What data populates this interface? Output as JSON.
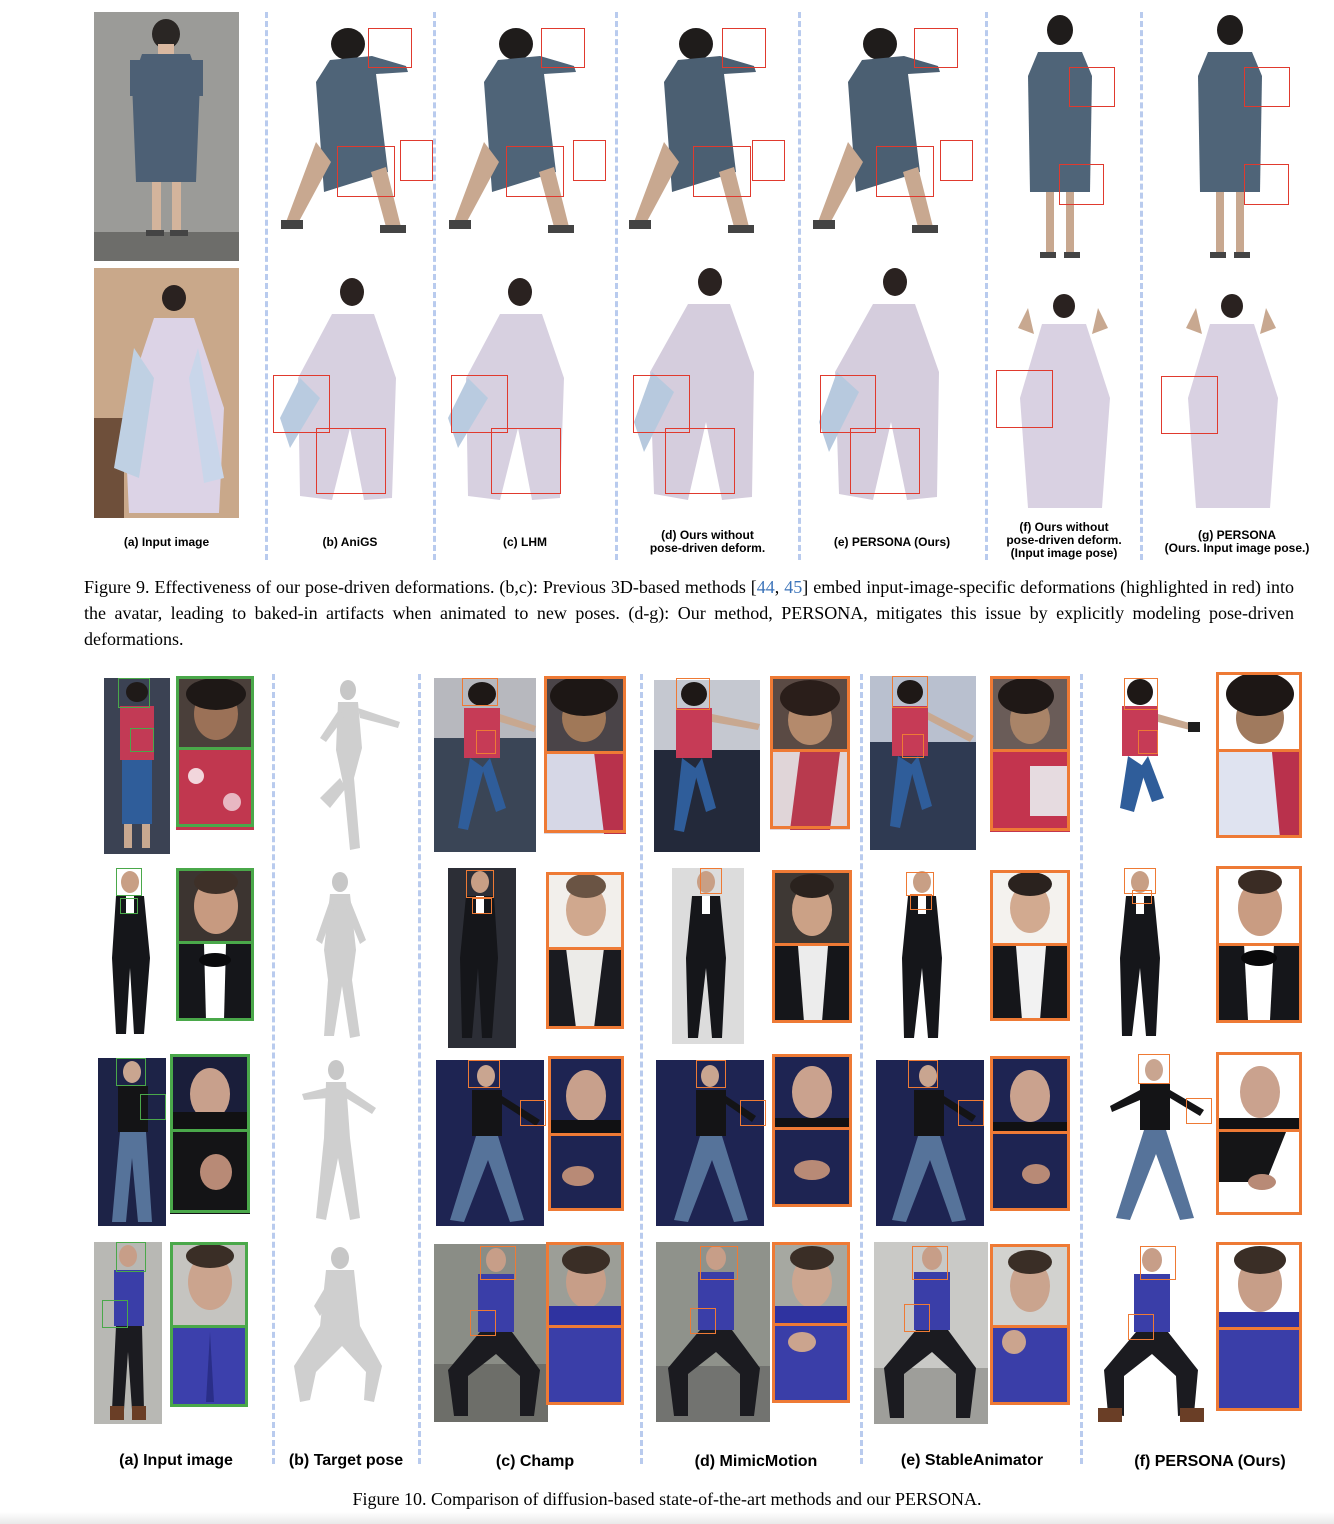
{
  "figure9": {
    "column_labels": [
      "(a) Input image",
      "(b) AniGS",
      "(c) LHM",
      "(d) Ours without\npose-driven deform.",
      "(e) PERSONA (Ours)",
      "(f) Ours without\npose-driven deform.\n(Input image pose)",
      "(g) PERSONA\n(Ours. Input image pose.)"
    ],
    "caption": {
      "prefix": "Figure 9.",
      "text_a": " Effectiveness of our pose-driven deformations. (b,c): Previous 3D-based methods [",
      "ref_1": "44",
      "sep": ", ",
      "ref_2": "45",
      "text_b": "] embed input-image-specific deformations (highlighted in red) into the avatar, leading to baked-in artifacts when animated to new poses. (d-g): Our method, PERSONA, mitigates this issue by explicitly modeling pose-driven deformations."
    }
  },
  "figure10": {
    "column_labels": [
      "(a) Input image",
      "(b) Target pose",
      "(c) Champ",
      "(d) MimicMotion",
      "(e) StableAnimator",
      "(f) PERSONA (Ours)"
    ],
    "caption": "Figure 10. Comparison of diffusion-based state-of-the-art methods and our PERSONA."
  },
  "colors": {
    "highlight_red": "#e03a2e",
    "input_green": "#4aa84a",
    "zoom_orange": "#ee7a35",
    "separator": "#b9cbee",
    "ref_link": "#3b73b9"
  }
}
